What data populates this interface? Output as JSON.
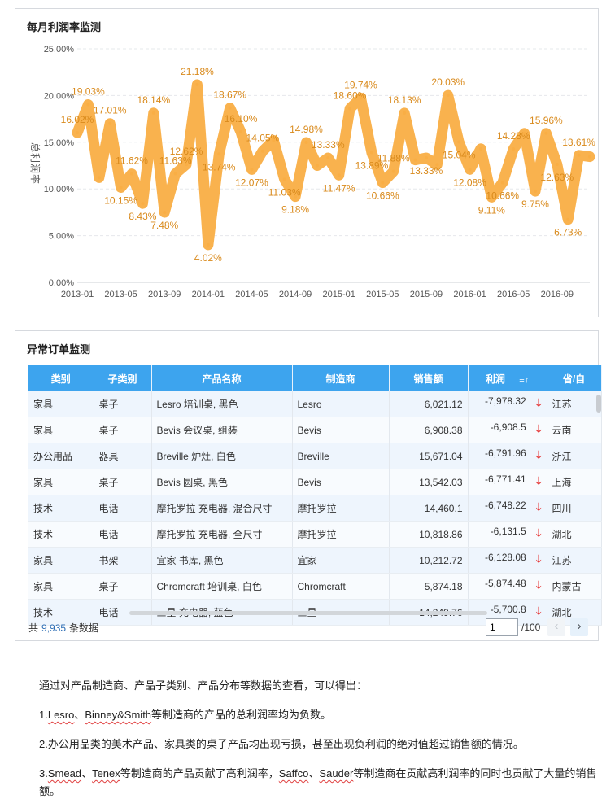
{
  "chart_panel": {
    "title": "每月利润率监测"
  },
  "chart_data": {
    "type": "line",
    "title": "每月利润率监测",
    "ylabel": "总利润率",
    "xlabel": "",
    "ylim": [
      0,
      25
    ],
    "yticks": [
      "0.00%",
      "5.00%",
      "10.00%",
      "15.00%",
      "20.00%",
      "25.00%"
    ],
    "xticks": [
      "2013-01",
      "2013-05",
      "2013-09",
      "2014-01",
      "2014-05",
      "2014-09",
      "2015-01",
      "2015-05",
      "2015-09",
      "2016-01",
      "2016-05",
      "2016-09"
    ],
    "x": [
      "2013-01",
      "2013-02",
      "2013-03",
      "2013-04",
      "2013-05",
      "2013-06",
      "2013-07",
      "2013-08",
      "2013-09",
      "2013-10",
      "2013-11",
      "2013-12",
      "2014-01",
      "2014-02",
      "2014-03",
      "2014-04",
      "2014-05",
      "2014-06",
      "2014-07",
      "2014-08",
      "2014-09",
      "2014-10",
      "2014-11",
      "2014-12",
      "2015-01",
      "2015-02",
      "2015-03",
      "2015-04",
      "2015-05",
      "2015-06",
      "2015-07",
      "2015-08",
      "2015-09",
      "2015-10",
      "2015-11",
      "2015-12",
      "2016-01",
      "2016-02",
      "2016-03",
      "2016-04",
      "2016-05",
      "2016-06",
      "2016-07",
      "2016-08",
      "2016-09",
      "2016-10",
      "2016-11",
      "2016-12"
    ],
    "values": [
      16.02,
      19.03,
      11.2,
      17.01,
      10.15,
      11.62,
      8.43,
      18.14,
      7.48,
      11.63,
      12.62,
      21.18,
      4.02,
      13.74,
      18.67,
      16.1,
      12.07,
      14.05,
      15.2,
      11.03,
      9.18,
      14.98,
      12.5,
      13.33,
      11.47,
      18.6,
      19.74,
      13.89,
      10.66,
      11.88,
      18.13,
      13.1,
      13.33,
      12.6,
      20.03,
      15.04,
      12.08,
      14.3,
      9.11,
      10.66,
      14.28,
      15.96,
      9.75,
      15.96,
      12.63,
      6.73,
      13.61,
      13.45
    ],
    "labels": [
      "16.02%",
      "19.03%",
      "",
      "17.01%",
      "10.15%",
      "11.62%",
      "8.43%",
      "18.14%",
      "7.48%",
      "11.63%",
      "12.62%",
      "21.18%",
      "4.02%",
      "13.74%",
      "18.67%",
      "16.10%",
      "12.07%",
      "14.05%",
      "",
      "11.03%",
      "9.18%",
      "14.98%",
      "",
      "13.33%",
      "11.47%",
      "18.60%",
      "19.74%",
      "13.89%",
      "10.66%",
      "11.88%",
      "18.13%",
      "",
      "13.33%",
      "",
      "20.03%",
      "15.04%",
      "12.08%",
      "",
      "9.11%",
      "10.66%",
      "14.28%",
      "",
      "9.75%",
      "15.96%",
      "12.63%",
      "6.73%",
      "13.61%",
      ""
    ],
    "label_pos": [
      "a",
      "a",
      "a",
      "a",
      "b",
      "a",
      "b",
      "a",
      "b",
      "a",
      "a",
      "a",
      "b",
      "b",
      "a",
      "a",
      "b",
      "a",
      "a",
      "b",
      "b",
      "a",
      "a",
      "a",
      "b",
      "a",
      "a",
      "b",
      "b",
      "a",
      "a",
      "a",
      "b",
      "a",
      "a",
      "b",
      "b",
      "a",
      "b",
      "b",
      "a",
      "a",
      "b",
      "a",
      "b",
      "b",
      "a",
      "a"
    ],
    "color": "#f9ae45",
    "label_color": "#d98a1c",
    "grid": true
  },
  "table_panel": {
    "title": "异常订单监测",
    "columns": [
      "类别",
      "子类别",
      "产品名称",
      "制造商",
      "销售额",
      "利润",
      "省/自"
    ],
    "sort_icon": "≡↑",
    "rows": [
      [
        "家具",
        "桌子",
        "Lesro 培训桌, 黑色",
        "Lesro",
        "6,021.12",
        "-7,978.32",
        "江苏"
      ],
      [
        "家具",
        "桌子",
        "Bevis 会议桌, 组装",
        "Bevis",
        "6,908.38",
        "-6,908.5",
        "云南"
      ],
      [
        "办公用品",
        "器具",
        "Breville 炉灶, 白色",
        "Breville",
        "15,671.04",
        "-6,791.96",
        "浙江"
      ],
      [
        "家具",
        "桌子",
        "Bevis 圆桌, 黑色",
        "Bevis",
        "13,542.03",
        "-6,771.41",
        "上海"
      ],
      [
        "技术",
        "电话",
        "摩托罗拉 充电器, 混合尺寸",
        "摩托罗拉",
        "14,460.1",
        "-6,748.22",
        "四川"
      ],
      [
        "技术",
        "电话",
        "摩托罗拉 充电器, 全尺寸",
        "摩托罗拉",
        "10,818.86",
        "-6,131.5",
        "湖北"
      ],
      [
        "家具",
        "书架",
        "宜家 书库, 黑色",
        "宜家",
        "10,212.72",
        "-6,128.08",
        "江苏"
      ],
      [
        "家具",
        "桌子",
        "Chromcraft 培训桌, 白色",
        "Chromcraft",
        "5,874.18",
        "-5,874.48",
        "内蒙古"
      ],
      [
        "技术",
        "电话",
        "三星 充电器, 蓝色",
        "三星",
        "14,249.76",
        "-5,700.8",
        "湖北"
      ]
    ],
    "down_arrow": "🡓",
    "footer": {
      "prefix": "共",
      "count": "9,935",
      "suffix": "条数据",
      "page_value": "1",
      "page_total": "/100",
      "prev": "‹",
      "next": "›"
    }
  },
  "notes": {
    "intro": "通过对产品制造商、产品子类别、产品分布等数据的查看，可以得出：",
    "p1_a": "1.",
    "p1_b": "Lesro",
    "p1_c": "、",
    "p1_d": "Binney&Smith",
    "p1_e": "等制造商的产品的总利润率均为负数。",
    "p2": "2.办公用品类的美术产品、家具类的桌子产品均出现亏损，甚至出现负利润的绝对值超过销售额的情况。",
    "p3_a": "3.",
    "p3_b": "Smead",
    "p3_c": "、",
    "p3_d": "Tenex",
    "p3_e": "等制造商的产品贡献了高利润率，",
    "p3_f": "Saffco",
    "p3_g": "、",
    "p3_h": "Sauder",
    "p3_i": "等制造商在贡献高利润率的同时也贡献了大量的销售额。"
  }
}
